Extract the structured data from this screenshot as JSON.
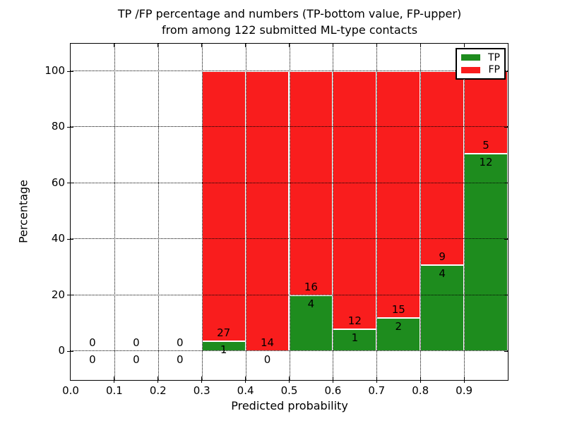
{
  "chart_data": {
    "type": "bar",
    "stacked": true,
    "title_lines": [
      "TP /FP percentage and numbers (TP-bottom value, FP-upper)",
      "from among 122 submitted ML-type contacts"
    ],
    "xlabel": "Predicted probability",
    "ylabel": "Percentage",
    "total_contacts": 122,
    "categories": [
      "0.0-0.1",
      "0.1-0.2",
      "0.2-0.3",
      "0.3-0.4",
      "0.4-0.5",
      "0.5-0.6",
      "0.6-0.7",
      "0.7-0.8",
      "0.8-0.9",
      "0.9-1.0"
    ],
    "series": [
      {
        "name": "TP",
        "color": "#1e8c1e",
        "counts": [
          0,
          0,
          0,
          1,
          0,
          4,
          1,
          2,
          4,
          12
        ],
        "percentages": [
          0,
          0,
          0,
          3.57,
          0,
          20,
          7.69,
          11.76,
          30.77,
          70.59
        ]
      },
      {
        "name": "FP",
        "color": "#f91d1d",
        "counts": [
          0,
          0,
          0,
          27,
          14,
          16,
          12,
          15,
          9,
          5
        ],
        "percentages": [
          0,
          0,
          0,
          96.43,
          100,
          80,
          92.31,
          88.24,
          69.23,
          29.41
        ]
      }
    ],
    "x_tick_labels": [
      "0.0",
      "0.1",
      "0.2",
      "0.3",
      "0.4",
      "0.5",
      "0.6",
      "0.7",
      "0.8",
      "0.9"
    ],
    "y_tick_labels": [
      "0",
      "20",
      "40",
      "60",
      "80",
      "100"
    ],
    "y_tick_values": [
      0,
      20,
      40,
      60,
      80,
      100
    ],
    "xlim": [
      0.0,
      1.0
    ],
    "ylim": [
      -10,
      110
    ],
    "grid": true,
    "legend": {
      "position": "upper right",
      "entries": [
        {
          "label": "TP",
          "color": "#1e8c1e"
        },
        {
          "label": "FP",
          "color": "#f91d1d"
        }
      ]
    }
  },
  "colors": {
    "tp": "#1e8c1e",
    "fp": "#f91d1d",
    "grid": "#000000",
    "frame": "#000000",
    "background": "#ffffff",
    "text": "#000000"
  }
}
